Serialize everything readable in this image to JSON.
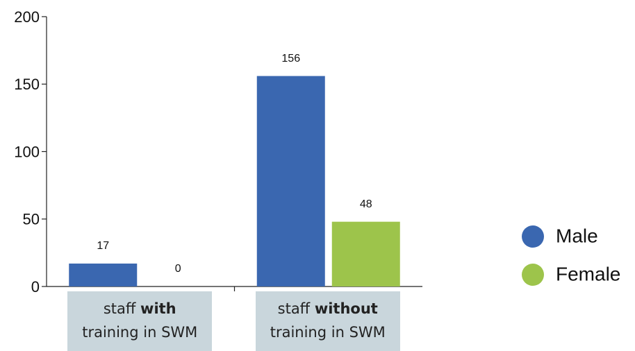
{
  "chart_data": {
    "type": "bar",
    "categories": [
      [
        "staff ",
        "with",
        "training in SWM"
      ],
      [
        "staff ",
        "without",
        "training in SWM"
      ]
    ],
    "series": [
      {
        "name": "Male",
        "color": "#3a67b0",
        "values": [
          17,
          156
        ]
      },
      {
        "name": "Female",
        "color": "#9dc44b",
        "values": [
          0,
          48
        ]
      }
    ],
    "ylim": [
      0,
      200
    ],
    "yticks": [
      0,
      50,
      100,
      150,
      200
    ],
    "grid": false,
    "legend": "right"
  }
}
